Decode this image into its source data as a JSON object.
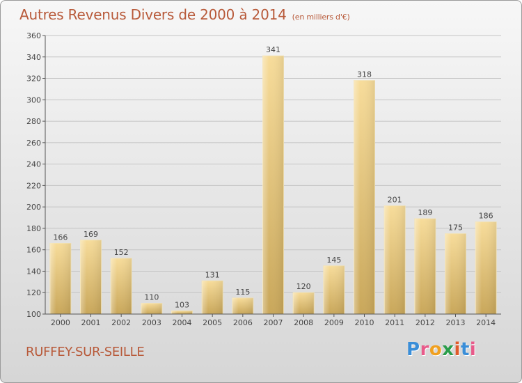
{
  "header": {
    "title": "Autres Revenus Divers de 2000 à 2014",
    "subtitle": "(en milliers d'€)"
  },
  "footer": {
    "commune": "RUFFEY-SUR-SEILLE",
    "logo_text": "Proxiti",
    "logo_colors": [
      "#3a8ed8",
      "#e85a8a",
      "#f0a020",
      "#2a9d4a",
      "#e05a2a",
      "#3a8ed8",
      "#e85a8a"
    ]
  },
  "chart_data": {
    "type": "bar",
    "categories": [
      "2000",
      "2001",
      "2002",
      "2003",
      "2004",
      "2005",
      "2006",
      "2007",
      "2008",
      "2009",
      "2010",
      "2011",
      "2012",
      "2013",
      "2014"
    ],
    "values": [
      166,
      169,
      152,
      110,
      103,
      131,
      115,
      341,
      120,
      145,
      318,
      201,
      189,
      175,
      186
    ],
    "title": "Autres Revenus Divers de 2000 à 2014",
    "xlabel": "",
    "ylabel": "",
    "ylim": [
      100,
      360
    ],
    "yticks": [
      100,
      120,
      140,
      160,
      180,
      200,
      220,
      240,
      260,
      280,
      300,
      320,
      340,
      360
    ],
    "grid": true,
    "bar_color": "#e8c87a"
  }
}
